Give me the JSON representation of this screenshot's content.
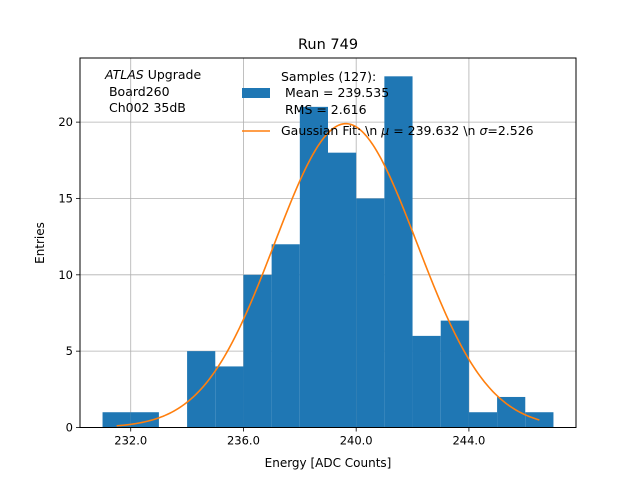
{
  "chart_data": {
    "type": "bar",
    "title": "Run 749",
    "xlabel": "Energy [ADC Counts]",
    "ylabel": "Entries",
    "xlim": [
      230.2,
      247.8
    ],
    "ylim": [
      0,
      24.2
    ],
    "grid": true,
    "x_ticks": [
      232,
      236,
      240,
      244
    ],
    "x_tick_labels": [
      "232.0",
      "236.0",
      "240.0",
      "244.0"
    ],
    "y_ticks": [
      0,
      5,
      10,
      15,
      20
    ],
    "y_tick_labels": [
      "0",
      "5",
      "10",
      "15",
      "20"
    ],
    "bin_edges": [
      231,
      232,
      233,
      234,
      235,
      236,
      237,
      238,
      239,
      240,
      241,
      242,
      243,
      244,
      245,
      246,
      247
    ],
    "counts": [
      1,
      1,
      0,
      5,
      4,
      10,
      12,
      21,
      18,
      15,
      23,
      6,
      7,
      1,
      2,
      1
    ],
    "fit": {
      "mu": 239.632,
      "sigma": 2.526,
      "amplitude": 19.9,
      "x_range": [
        231.5,
        246.5
      ]
    },
    "annotation": {
      "line1_italic": "ATLAS",
      "line1_rest": " Upgrade",
      "line2": " Board260",
      "line3": " Ch002 35dB"
    },
    "legend": {
      "position": "top-right",
      "histogram_line1": "Samples (127):",
      "histogram_line2": " Mean = 239.535",
      "histogram_line3": " RMS = 2.616",
      "fit_label_a": "Gaussian Fit: \\n ",
      "fit_label_mu": "μ",
      "fit_label_b": " = 239.632 \\n ",
      "fit_label_sigma": "σ",
      "fit_label_c": "=2.526"
    },
    "colors": {
      "histogram": "#1f77b4",
      "fit": "#ff7f0e",
      "grid": "#b0b0b0"
    }
  }
}
